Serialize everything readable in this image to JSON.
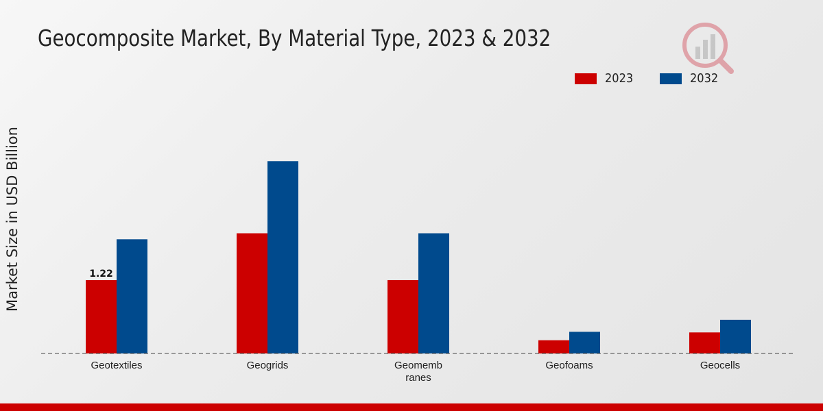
{
  "chart_data": {
    "type": "bar",
    "title": "Geocomposite Market, By Material Type, 2023 & 2032",
    "xlabel": "",
    "ylabel": "Market Size in USD Billion",
    "categories": [
      "Geotextiles",
      "Geogrids",
      "Geomemb\nranes",
      "Geofoams",
      "Geocells"
    ],
    "series": [
      {
        "name": "2023",
        "color": "#cc0000",
        "values": [
          1.22,
          2.0,
          1.22,
          0.22,
          0.35
        ]
      },
      {
        "name": "2032",
        "color": "#004a8d",
        "values": [
          1.9,
          3.2,
          2.0,
          0.36,
          0.56
        ]
      }
    ],
    "data_labels": [
      {
        "series": 0,
        "index": 0,
        "text": "1.22"
      }
    ],
    "ylim": [
      0,
      4.4
    ],
    "grid": false,
    "legend_position": "top-right"
  },
  "colors": {
    "accent_red": "#cc0000",
    "accent_blue": "#004a8d"
  },
  "logo_icon": "watermark-logo-icon"
}
